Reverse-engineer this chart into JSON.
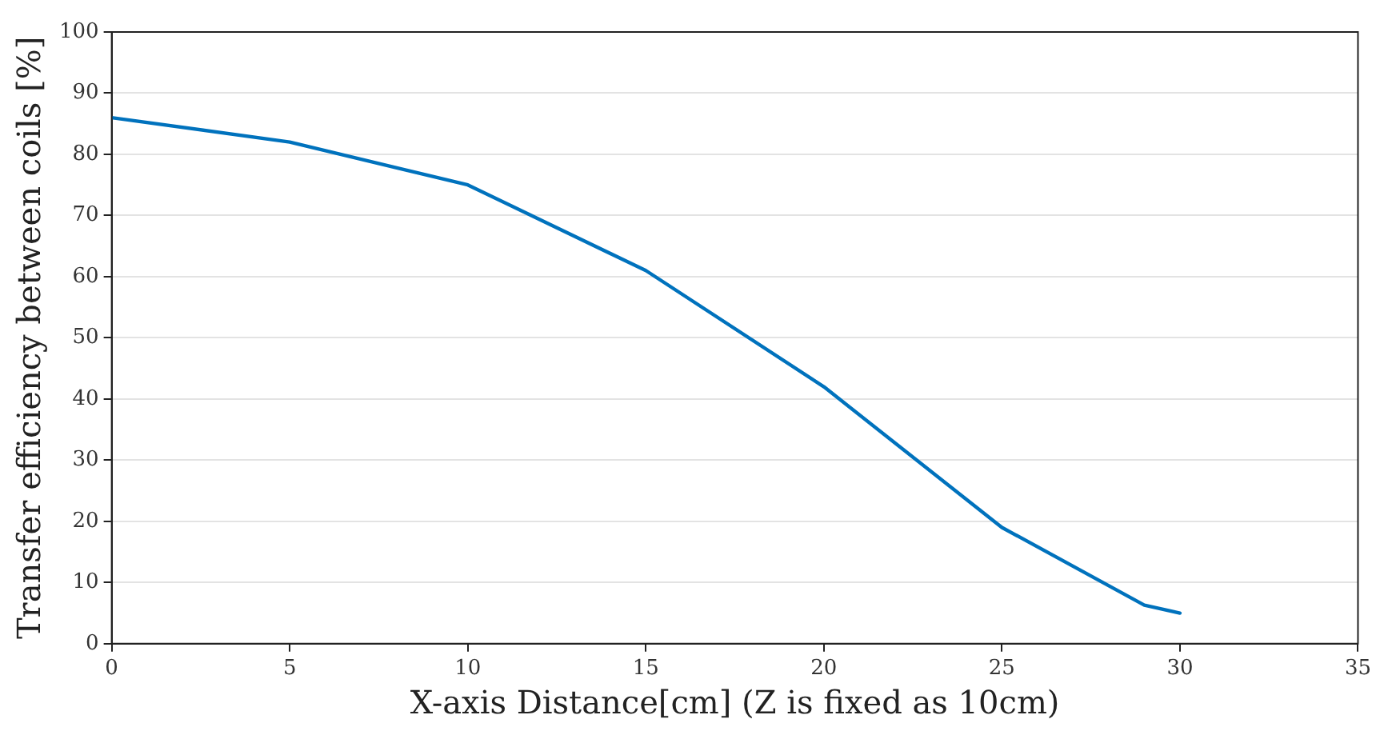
{
  "chart_data": {
    "type": "line",
    "xlabel": "X-axis Distance[cm] (Z is fixed as 10cm)",
    "ylabel": "Transfer efficiency between coils [%]",
    "x": [
      0,
      5,
      10,
      15,
      20,
      25,
      29,
      30
    ],
    "series": [
      {
        "color": "#0072bd",
        "values": [
          86,
          82,
          75,
          61,
          42,
          19,
          6.3,
          5
        ]
      }
    ],
    "xlim": [
      0,
      35
    ],
    "xticks": [
      0,
      5,
      10,
      15,
      20,
      25,
      30,
      35
    ],
    "ylim": [
      0,
      100
    ],
    "yticks": [
      0,
      10,
      20,
      30,
      40,
      50,
      60,
      70,
      80,
      90,
      100
    ],
    "grid": "y",
    "legend": false,
    "marker": "none",
    "line_style": "solid"
  }
}
